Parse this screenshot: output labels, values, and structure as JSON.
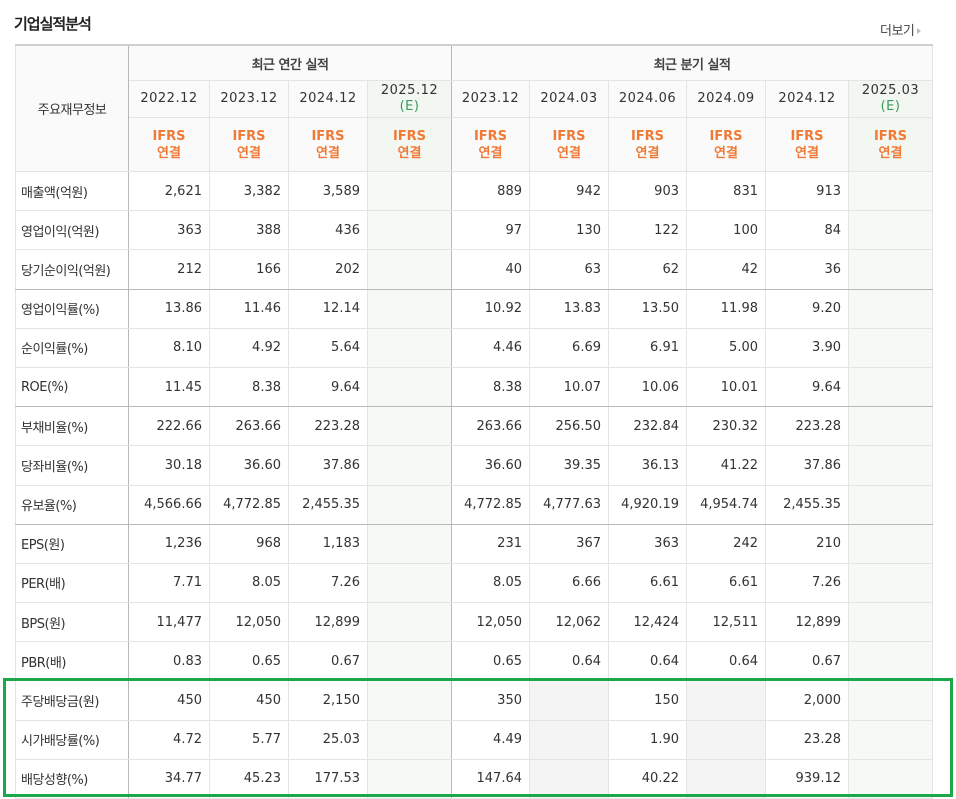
{
  "title": "기업실적분석",
  "more_label": "더보기",
  "header": {
    "row_label": "주요재무정보",
    "annual_group": "최근 연간 실적",
    "quarter_group": "최근 분기 실적",
    "annual_periods": [
      {
        "period": "2022.12",
        "est": ""
      },
      {
        "period": "2023.12",
        "est": ""
      },
      {
        "period": "2024.12",
        "est": ""
      },
      {
        "period": "2025.12",
        "est": "(E)"
      }
    ],
    "quarter_periods": [
      {
        "period": "2023.12",
        "est": ""
      },
      {
        "period": "2024.03",
        "est": ""
      },
      {
        "period": "2024.06",
        "est": ""
      },
      {
        "period": "2024.09",
        "est": ""
      },
      {
        "period": "2024.12",
        "est": ""
      },
      {
        "period": "2025.03",
        "est": "(E)"
      }
    ],
    "basis_line1": "IFRS",
    "basis_line2": "연결"
  },
  "rows": [
    {
      "label": "매출액(억원)",
      "annual": [
        "2,621",
        "3,382",
        "3,589",
        ""
      ],
      "quarter": [
        "889",
        "942",
        "903",
        "831",
        "913",
        ""
      ]
    },
    {
      "label": "영업이익(억원)",
      "annual": [
        "363",
        "388",
        "436",
        ""
      ],
      "quarter": [
        "97",
        "130",
        "122",
        "100",
        "84",
        ""
      ]
    },
    {
      "label": "당기순이익(억원)",
      "annual": [
        "212",
        "166",
        "202",
        ""
      ],
      "quarter": [
        "40",
        "63",
        "62",
        "42",
        "36",
        ""
      ]
    },
    {
      "label": "영업이익률(%)",
      "annual": [
        "13.86",
        "11.46",
        "12.14",
        ""
      ],
      "quarter": [
        "10.92",
        "13.83",
        "13.50",
        "11.98",
        "9.20",
        ""
      ]
    },
    {
      "label": "순이익률(%)",
      "annual": [
        "8.10",
        "4.92",
        "5.64",
        ""
      ],
      "quarter": [
        "4.46",
        "6.69",
        "6.91",
        "5.00",
        "3.90",
        ""
      ]
    },
    {
      "label": "ROE(%)",
      "annual": [
        "11.45",
        "8.38",
        "9.64",
        ""
      ],
      "quarter": [
        "8.38",
        "10.07",
        "10.06",
        "10.01",
        "9.64",
        ""
      ]
    },
    {
      "label": "부채비율(%)",
      "annual": [
        "222.66",
        "263.66",
        "223.28",
        ""
      ],
      "quarter": [
        "263.66",
        "256.50",
        "232.84",
        "230.32",
        "223.28",
        ""
      ]
    },
    {
      "label": "당좌비율(%)",
      "annual": [
        "30.18",
        "36.60",
        "37.86",
        ""
      ],
      "quarter": [
        "36.60",
        "39.35",
        "36.13",
        "41.22",
        "37.86",
        ""
      ]
    },
    {
      "label": "유보율(%)",
      "annual": [
        "4,566.66",
        "4,772.85",
        "2,455.35",
        ""
      ],
      "quarter": [
        "4,772.85",
        "4,777.63",
        "4,920.19",
        "4,954.74",
        "2,455.35",
        ""
      ]
    },
    {
      "label": "EPS(원)",
      "annual": [
        "1,236",
        "968",
        "1,183",
        ""
      ],
      "quarter": [
        "231",
        "367",
        "363",
        "242",
        "210",
        ""
      ]
    },
    {
      "label": "PER(배)",
      "annual": [
        "7.71",
        "8.05",
        "7.26",
        ""
      ],
      "quarter": [
        "8.05",
        "6.66",
        "6.61",
        "6.61",
        "7.26",
        ""
      ]
    },
    {
      "label": "BPS(원)",
      "annual": [
        "11,477",
        "12,050",
        "12,899",
        ""
      ],
      "quarter": [
        "12,050",
        "12,062",
        "12,424",
        "12,511",
        "12,899",
        ""
      ]
    },
    {
      "label": "PBR(배)",
      "annual": [
        "0.83",
        "0.65",
        "0.67",
        ""
      ],
      "quarter": [
        "0.65",
        "0.64",
        "0.64",
        "0.64",
        "0.67",
        ""
      ]
    },
    {
      "label": "주당배당금(원)",
      "annual": [
        "450",
        "450",
        "2,150",
        ""
      ],
      "quarter": [
        "350",
        "",
        "150",
        "",
        "2,000",
        ""
      ]
    },
    {
      "label": "시가배당률(%)",
      "annual": [
        "4.72",
        "5.77",
        "25.03",
        ""
      ],
      "quarter": [
        "4.49",
        "",
        "1.90",
        "",
        "23.28",
        ""
      ]
    },
    {
      "label": "배당성향(%)",
      "annual": [
        "34.77",
        "45.23",
        "177.53",
        ""
      ],
      "quarter": [
        "147.64",
        "",
        "40.22",
        "",
        "939.12",
        ""
      ]
    }
  ],
  "colors": {
    "highlight": "#1aa84a",
    "ifrs": "#f07a35",
    "estimate_bg": "#f2f7f2"
  }
}
